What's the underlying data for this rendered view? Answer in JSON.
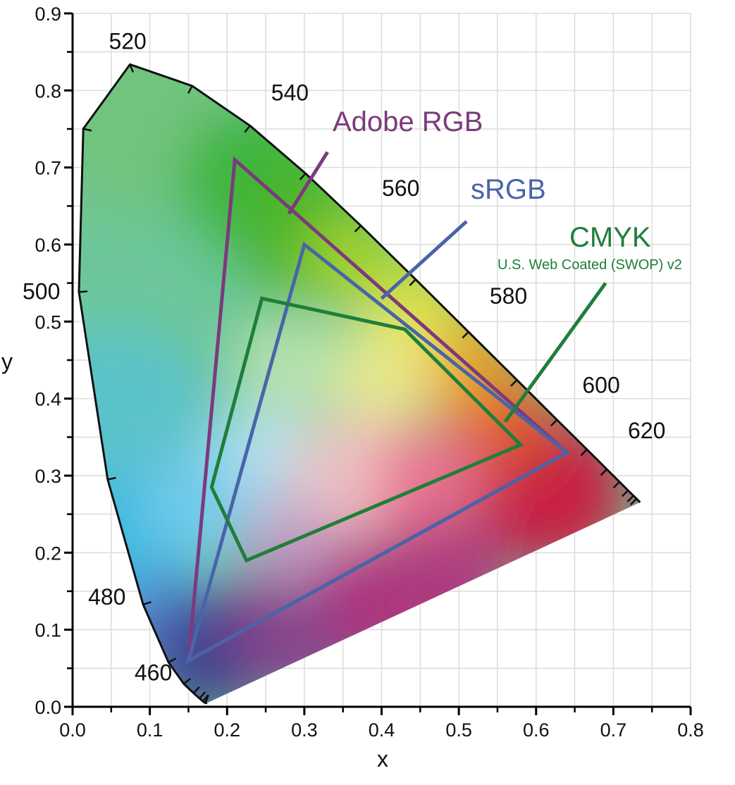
{
  "chart_data": {
    "type": "chromaticity-diagram",
    "title": "",
    "xlabel": "x",
    "ylabel": "y",
    "xlim": [
      0.0,
      0.8
    ],
    "ylim": [
      0.0,
      0.9
    ],
    "grid": true,
    "xticks": [
      "0.0",
      "0.1",
      "0.2",
      "0.3",
      "0.4",
      "0.5",
      "0.6",
      "0.7",
      "0.8"
    ],
    "xtick_values": [
      0.0,
      0.1,
      0.2,
      0.3,
      0.4,
      0.5,
      0.6,
      0.7,
      0.8
    ],
    "yticks": [
      "0.0",
      "0.1",
      "0.2",
      "0.3",
      "0.4",
      "0.5",
      "0.6",
      "0.7",
      "0.8",
      "0.9"
    ],
    "ytick_values": [
      0.0,
      0.1,
      0.2,
      0.3,
      0.4,
      0.5,
      0.6,
      0.7,
      0.8,
      0.9
    ],
    "spectral_locus": [
      [
        0.1741,
        0.005
      ],
      [
        0.172,
        0.0048
      ],
      [
        0.1689,
        0.0069
      ],
      [
        0.1644,
        0.0109
      ],
      [
        0.1566,
        0.0177
      ],
      [
        0.144,
        0.0297
      ],
      [
        0.1241,
        0.0578
      ],
      [
        0.0913,
        0.1327
      ],
      [
        0.0454,
        0.295
      ],
      [
        0.0082,
        0.5384
      ],
      [
        0.0139,
        0.7502
      ],
      [
        0.0743,
        0.8338
      ],
      [
        0.1547,
        0.8059
      ],
      [
        0.2296,
        0.7543
      ],
      [
        0.3016,
        0.6923
      ],
      [
        0.3731,
        0.6245
      ],
      [
        0.4441,
        0.5547
      ],
      [
        0.5125,
        0.4866
      ],
      [
        0.5752,
        0.4242
      ],
      [
        0.627,
        0.3725
      ],
      [
        0.6658,
        0.334
      ],
      [
        0.6915,
        0.3083
      ],
      [
        0.7079,
        0.292
      ],
      [
        0.719,
        0.2809
      ],
      [
        0.726,
        0.274
      ],
      [
        0.73,
        0.27
      ],
      [
        0.7347,
        0.2653
      ]
    ],
    "wavelength_labels": [
      {
        "label": "460",
        "x": 0.144,
        "y": 0.0297
      },
      {
        "label": "480",
        "x": 0.0913,
        "y": 0.1327
      },
      {
        "label": "500",
        "x": 0.0082,
        "y": 0.5384
      },
      {
        "label": "520",
        "x": 0.0743,
        "y": 0.8338
      },
      {
        "label": "540",
        "x": 0.2296,
        "y": 0.7543
      },
      {
        "label": "560",
        "x": 0.3731,
        "y": 0.6245
      },
      {
        "label": "580",
        "x": 0.5125,
        "y": 0.4866
      },
      {
        "label": "600",
        "x": 0.627,
        "y": 0.3725
      },
      {
        "label": "620",
        "x": 0.6915,
        "y": 0.3083
      }
    ],
    "series": [
      {
        "name": "Adobe RGB",
        "subtitle": "",
        "color": "#7c3a7c",
        "vertices": [
          [
            0.64,
            0.33
          ],
          [
            0.21,
            0.71
          ],
          [
            0.15,
            0.06
          ]
        ],
        "pointer_from": [
          0.33,
          0.72
        ],
        "pointer_to": [
          0.28,
          0.64
        ]
      },
      {
        "name": "sRGB",
        "subtitle": "",
        "color": "#4a64a8",
        "vertices": [
          [
            0.64,
            0.33
          ],
          [
            0.3,
            0.6
          ],
          [
            0.15,
            0.06
          ]
        ],
        "pointer_from": [
          0.51,
          0.63
        ],
        "pointer_to": [
          0.4,
          0.53
        ]
      },
      {
        "name": "CMYK",
        "subtitle": "U.S. Web Coated (SWOP) v2",
        "color": "#1f7e3a",
        "vertices": [
          [
            0.245,
            0.53
          ],
          [
            0.43,
            0.49
          ],
          [
            0.58,
            0.34
          ],
          [
            0.225,
            0.19
          ],
          [
            0.18,
            0.285
          ]
        ],
        "pointer_from": [
          0.69,
          0.55
        ],
        "pointer_to": [
          0.56,
          0.37
        ]
      }
    ]
  }
}
